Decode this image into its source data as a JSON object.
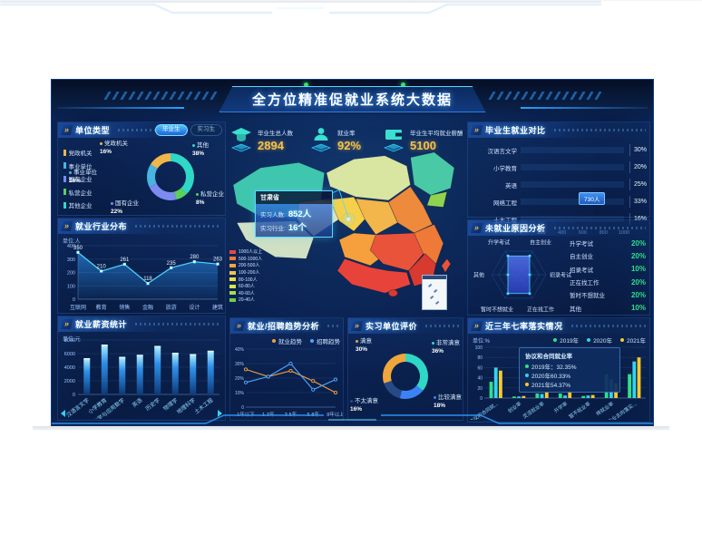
{
  "title": "全方位精准促就业系统大数据",
  "colors": {
    "cyan": "#2fd3ff",
    "teal": "#2fd8c6",
    "green": "#2ee08a",
    "yellow": "#f5c92e",
    "orange": "#f5a03c",
    "blue": "#2f8fe8",
    "periwinkle": "#7b8bf0",
    "lightblue": "#48b4e0",
    "gold": "#f5c24a",
    "red": "#e8433a"
  },
  "stats": [
    {
      "icon": "graduation-cap",
      "label": "毕业生总人数",
      "value": "2894"
    },
    {
      "icon": "person",
      "label": "就业率",
      "value": "92%"
    },
    {
      "icon": "wallet",
      "label": "毕业生平均就业薪酬",
      "value": "5100"
    }
  ],
  "panels": {
    "unit_type": {
      "title": "单位类型",
      "tabs": [
        "毕业生",
        "实习生"
      ],
      "legend": [
        "党政机关",
        "事业单位",
        "国有企业",
        "私营企业",
        "其他企业"
      ]
    },
    "industry": {
      "title": "就业行业分布",
      "unit": "单位:人"
    },
    "salary": {
      "title": "就业薪资统计",
      "unit": "单位:元"
    },
    "grad": {
      "title": "毕业生就业对比"
    },
    "radar": {
      "title": "未就业原因分析"
    },
    "seven": {
      "title": "近三年七率落实情况",
      "unit": "单位:%"
    },
    "trend": {
      "title": "就业/招聘趋势分析"
    },
    "eval": {
      "title": "实习单位评价"
    }
  },
  "map": {
    "tooltip": {
      "region": "甘肃省",
      "rows": [
        {
          "label": "实习人数:",
          "value": "852人"
        },
        {
          "label": "实习行业:",
          "value": "16个"
        }
      ]
    },
    "legend": [
      {
        "label": "1000人以上",
        "color": "#e34a3c"
      },
      {
        "label": "500-1000人",
        "color": "#ee7a38"
      },
      {
        "label": "200-500人",
        "color": "#f5a43c"
      },
      {
        "label": "100-200人",
        "color": "#f3c44a"
      },
      {
        "label": "80-100人",
        "color": "#f0dc4a"
      },
      {
        "label": "60-80人",
        "color": "#d4e44e"
      },
      {
        "label": "40-60人",
        "color": "#a5dc4e"
      },
      {
        "label": "20-40人",
        "color": "#6fce4e"
      }
    ]
  },
  "chart_data": [
    {
      "id": "unit_type",
      "type": "pie",
      "title": "单位类型",
      "segments": [
        {
          "label": "其他",
          "pct": 38,
          "color": "#2fd8c6"
        },
        {
          "label": "私营企业",
          "pct": 8,
          "color": "#5ad05a"
        },
        {
          "label": "国有企业",
          "pct": 22,
          "color": "#7b8bf0"
        },
        {
          "label": "事业单位",
          "pct": 16,
          "color": "#48b4e0"
        },
        {
          "label": "党政机关",
          "pct": 16,
          "color": "#f0b64a"
        }
      ]
    },
    {
      "id": "industry",
      "type": "line",
      "title": "就业行业分布",
      "ylabel": "单位:人",
      "categories": [
        "互联网",
        "教育",
        "销售",
        "金融",
        "旅游",
        "设计",
        "建筑"
      ],
      "values": [
        350,
        210,
        261,
        118,
        235,
        280,
        263
      ],
      "ylim": [
        0,
        400
      ],
      "yticks": [
        0,
        100,
        200,
        300,
        400
      ]
    },
    {
      "id": "salary",
      "type": "bar",
      "title": "就业薪资统计",
      "ylabel": "单位:元",
      "categories": [
        "汉语言文学",
        "小学教育",
        "数学与应用数学",
        "英语",
        "历史学",
        "物理学",
        "地理科学",
        "土木工程"
      ],
      "values": [
        5200,
        7200,
        5400,
        5700,
        7000,
        6000,
        5800,
        6300
      ],
      "ylim": [
        0,
        8000
      ],
      "yticks": [
        0,
        2000,
        4000,
        6000,
        8000
      ]
    },
    {
      "id": "grad",
      "type": "bar",
      "orientation": "horizontal",
      "title": "毕业生就业对比",
      "categories": [
        "汉语言文学",
        "小学教育",
        "英语",
        "网络工程",
        "土木工程"
      ],
      "values": [
        700,
        450,
        570,
        730,
        430
      ],
      "pcts": [
        "30%",
        "20%",
        "25%",
        "33%",
        "16%"
      ],
      "xlim": [
        0,
        1000
      ],
      "xticks": [
        "0",
        "200",
        "400",
        "600",
        "800",
        "1000"
      ],
      "tooltip": {
        "index": 3,
        "text": "730人"
      }
    },
    {
      "id": "radar",
      "type": "radar",
      "title": "未就业原因分析",
      "max": 25,
      "axes": [
        "升学考试",
        "自主创业",
        "招录考试",
        "正在找工作",
        "暂时不想就业",
        "其他"
      ],
      "values": [
        20,
        20,
        10,
        20,
        20,
        10
      ],
      "list": [
        {
          "label": "升学考试",
          "value": "20%"
        },
        {
          "label": "自主创业",
          "value": "20%"
        },
        {
          "label": "招录考试",
          "value": "10%"
        },
        {
          "label": "正在找工作",
          "value": "20%"
        },
        {
          "label": "暂时不想就业",
          "value": "20%"
        },
        {
          "label": "其他",
          "value": "10%"
        }
      ]
    },
    {
      "id": "seven",
      "type": "bar",
      "grouped": true,
      "title": "近三年七率落实情况",
      "ylabel": "单位:%",
      "categories": [
        "协议和合同就...",
        "创业率",
        "灵活就业率",
        "升学率",
        "暂不就业率",
        "待就业率",
        "毕业去向落实..."
      ],
      "series": [
        {
          "name": "2019年",
          "color": "#2ee08a",
          "values": [
            32,
            3,
            9,
            9,
            4,
            47,
            47
          ]
        },
        {
          "name": "2020年",
          "color": "#35d3f0",
          "values": [
            60,
            3,
            8,
            5,
            5,
            37,
            72
          ]
        },
        {
          "name": "2021年",
          "color": "#f5c92e",
          "values": [
            54,
            4,
            12,
            13,
            6,
            29,
            80
          ]
        }
      ],
      "ylim": [
        0,
        100
      ],
      "yticks": [
        0,
        20,
        40,
        60,
        80,
        100
      ],
      "tooltip": {
        "title": "协议和合同就业率",
        "rows": [
          "2019年：32.35%",
          "2020年60.33%",
          "2021年54.37%"
        ]
      }
    },
    {
      "id": "trend",
      "type": "line",
      "title": "就业/招聘趋势分析",
      "categories": [
        "1年以下",
        "1-3年",
        "3-5年",
        "5-8年",
        "8年以上"
      ],
      "series": [
        {
          "name": "就业趋势",
          "color": "#f5a03c",
          "values": [
            26,
            21,
            25,
            18,
            10
          ]
        },
        {
          "name": "招聘趋势",
          "color": "#4fa8ff",
          "values": [
            17,
            21,
            30,
            12,
            19
          ]
        }
      ],
      "ylim": [
        0,
        40
      ],
      "yticks": [
        "0",
        "10%",
        "20%",
        "30%",
        "40%"
      ]
    },
    {
      "id": "eval",
      "type": "pie",
      "title": "实习单位评价",
      "segments": [
        {
          "label": "非常满意",
          "pct": 36,
          "color": "#2fd8c6"
        },
        {
          "label": "比较满意",
          "pct": 18,
          "color": "#3b82f6"
        },
        {
          "label": "不太满意",
          "pct": 16,
          "color": "#274a86"
        },
        {
          "label": "满意",
          "pct": 30,
          "color": "#f0a63c"
        }
      ]
    }
  ]
}
